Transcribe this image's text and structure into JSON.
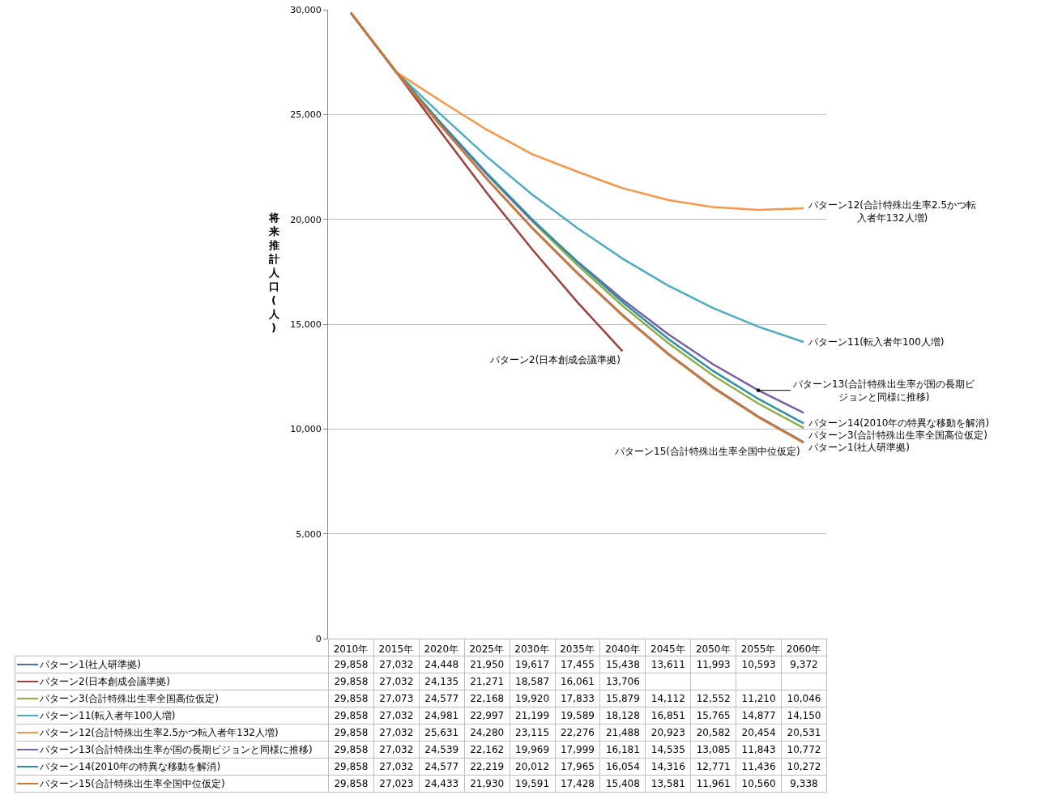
{
  "chart_data": {
    "type": "line",
    "ylabel": "将来推計人口(人)",
    "categories": [
      "2010年",
      "2015年",
      "2020年",
      "2025年",
      "2030年",
      "2035年",
      "2040年",
      "2045年",
      "2050年",
      "2055年",
      "2060年"
    ],
    "ylim": [
      0,
      30000
    ],
    "yticks": [
      {
        "value": 0,
        "label": "0"
      },
      {
        "value": 5000,
        "label": "5,000"
      },
      {
        "value": 10000,
        "label": "10,000"
      },
      {
        "value": 15000,
        "label": "15,000"
      },
      {
        "value": 20000,
        "label": "20,000"
      },
      {
        "value": 25000,
        "label": "25,000"
      },
      {
        "value": 30000,
        "label": "30,000"
      }
    ],
    "grid": "y",
    "legend": "bottom",
    "line_style": "solid",
    "marker": "none",
    "series": [
      {
        "name": "パターン1(社人研準拠)",
        "color": "#4a6fb5",
        "values": [
          29858,
          27032,
          24448,
          21950,
          19617,
          17455,
          15438,
          13611,
          11993,
          10593,
          9372
        ],
        "value_labels": [
          "29,858",
          "27,032",
          "24,448",
          "21,950",
          "19,617",
          "17,455",
          "15,438",
          "13,611",
          "11,993",
          "10,593",
          "9,372"
        ]
      },
      {
        "name": "パターン2(日本創成会議準拠)",
        "color": "#a0403c",
        "values": [
          29858,
          27032,
          24135,
          21271,
          18587,
          16061,
          13706,
          null,
          null,
          null,
          null
        ],
        "value_labels": [
          "29,858",
          "27,032",
          "24,135",
          "21,271",
          "18,587",
          "16,061",
          "13,706",
          null,
          null,
          null,
          null
        ]
      },
      {
        "name": "パターン3(合計特殊出生率全国高位仮定)",
        "color": "#8db04a",
        "values": [
          29858,
          27073,
          24577,
          22168,
          19920,
          17833,
          15879,
          14112,
          12552,
          11210,
          10046
        ],
        "value_labels": [
          "29,858",
          "27,073",
          "24,577",
          "22,168",
          "19,920",
          "17,833",
          "15,879",
          "14,112",
          "12,552",
          "11,210",
          "10,046"
        ]
      },
      {
        "name": "パターン11(転入者年100人増)",
        "color": "#4bacc6",
        "values": [
          29858,
          27032,
          24981,
          22997,
          21199,
          19589,
          18128,
          16851,
          15765,
          14877,
          14150
        ],
        "value_labels": [
          "29,858",
          "27,032",
          "24,981",
          "22,997",
          "21,199",
          "19,589",
          "18,128",
          "16,851",
          "15,765",
          "14,877",
          "14,150"
        ]
      },
      {
        "name": "パターン12(合計特殊出生率2.5かつ転入者年132人増)",
        "color": "#f79646",
        "values": [
          29858,
          27032,
          25631,
          24280,
          23115,
          22276,
          21488,
          20923,
          20582,
          20454,
          20531
        ],
        "value_labels": [
          "29,858",
          "27,032",
          "25,631",
          "24,280",
          "23,115",
          "22,276",
          "21,488",
          "20,923",
          "20,582",
          "20,454",
          "20,531"
        ]
      },
      {
        "name": "パターン13(合計特殊出生率が国の長期ビジョンと同様に推移)",
        "color": "#7b5ea7",
        "values": [
          29858,
          27032,
          24539,
          22162,
          19969,
          17999,
          16181,
          14535,
          13085,
          11843,
          10772
        ],
        "value_labels": [
          "29,858",
          "27,032",
          "24,539",
          "22,162",
          "19,969",
          "17,999",
          "16,181",
          "14,535",
          "13,085",
          "11,843",
          "10,772"
        ]
      },
      {
        "name": "パターン14(2010年の特異な移動を解消)",
        "color": "#2e8fa8",
        "values": [
          29858,
          27032,
          24577,
          22219,
          20012,
          17965,
          16054,
          14316,
          12771,
          11436,
          10272
        ],
        "value_labels": [
          "29,858",
          "27,032",
          "24,577",
          "22,219",
          "20,012",
          "17,965",
          "16,054",
          "14,316",
          "12,771",
          "11,436",
          "10,272"
        ]
      },
      {
        "name": "パターン15(合計特殊出生率全国中位仮定)",
        "color": "#d7772f",
        "values": [
          29858,
          27023,
          24433,
          21930,
          19591,
          17428,
          15408,
          13581,
          11961,
          10560,
          9338
        ],
        "value_labels": [
          "29,858",
          "27,023",
          "24,433",
          "21,930",
          "19,591",
          "17,428",
          "15,408",
          "13,581",
          "11,961",
          "10,560",
          "9,338"
        ]
      }
    ],
    "annotations": [
      {
        "text": "パターン12(合計特殊出生率2.5かつ転入者年132人増)",
        "x": "2060年",
        "y": 20531
      },
      {
        "text": "パターン11(転入者年100人増)",
        "x": "2060年",
        "y": 14150
      },
      {
        "text": "パターン2(日本創成会議準拠)",
        "x": "2040年",
        "y": 13706
      },
      {
        "text": "パターン13(合計特殊出生率が国の長期ビジョンと同様に推移)",
        "x": "2055年",
        "y": 11843
      },
      {
        "text": "パターン14(2010年の特異な移動を解消)",
        "x": "2060年",
        "y": 10272
      },
      {
        "text": "パターン3(合計特殊出生率全国高位仮定)",
        "x": "2060年",
        "y": 10046
      },
      {
        "text": "パターン1(社人研準拠)",
        "x": "2060年",
        "y": 9372
      },
      {
        "text": "パターン15(合計特殊出生率全国中位仮定)",
        "x": "2060年",
        "y": 9338
      }
    ]
  }
}
